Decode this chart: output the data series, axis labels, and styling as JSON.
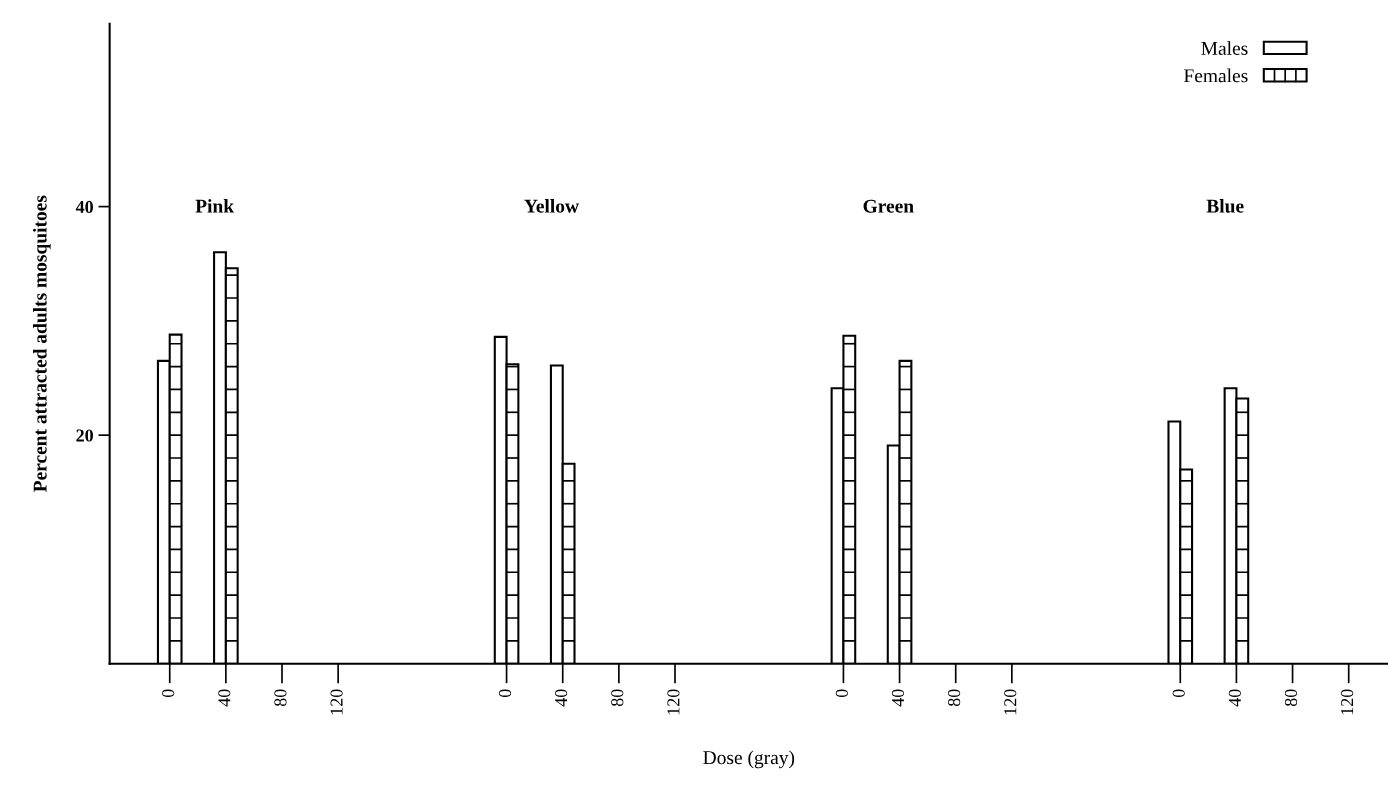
{
  "chart_data": {
    "type": "bar",
    "xlabel": "Dose (gray)",
    "ylabel": "Percent attracted adults mosquitoes",
    "annotations": [
      "Pink",
      "Yellow",
      "Green",
      "Blue"
    ],
    "categories": [
      "0",
      "40",
      "80",
      "120",
      null,
      null,
      "0",
      "40",
      "80",
      "120",
      null,
      null,
      "0",
      "40",
      "80",
      "120",
      null,
      null,
      "0",
      "40",
      "80",
      "120"
    ],
    "series": [
      {
        "name": "Males",
        "color": "#ffffff",
        "values": [
          26.5,
          36.0,
          null,
          null,
          null,
          null,
          28.6,
          26.1,
          null,
          null,
          null,
          null,
          24.1,
          19.1,
          null,
          null,
          null,
          null,
          21.2,
          24.1,
          null,
          null
        ]
      },
      {
        "name": "Females",
        "color": "#ffffff",
        "values": [
          28.8,
          34.6,
          null,
          null,
          null,
          null,
          26.2,
          17.5,
          null,
          null,
          null,
          null,
          28.7,
          26.5,
          null,
          null,
          null,
          null,
          17.0,
          23.2,
          null,
          null
        ]
      }
    ],
    "ylim": [
      0,
      56
    ],
    "yticks": [
      20,
      40
    ],
    "grid": false,
    "legend": "top right"
  }
}
